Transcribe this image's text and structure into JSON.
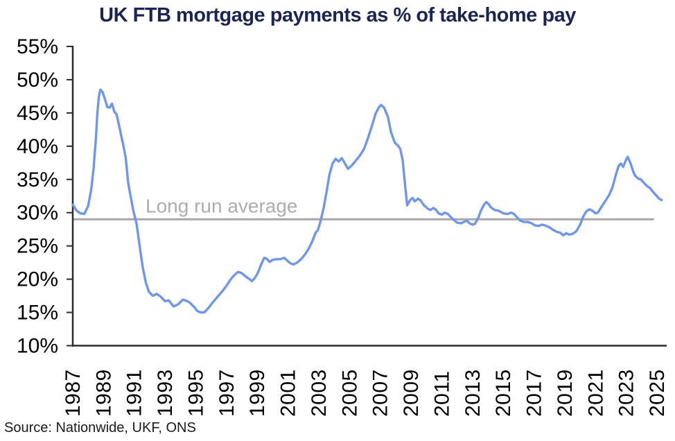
{
  "chart_data": {
    "type": "line",
    "title": "UK FTB mortgage payments as % of take-home pay",
    "source": "Source: Nationwide, UKF, ONS",
    "xlabel": "",
    "ylabel": "",
    "grid": false,
    "legend": "none",
    "colors": {
      "title": "#1a2557",
      "series": "#6c96f2",
      "average_line": "#a7a7a7",
      "average_label": "#adadad",
      "axis": "#2b2b2b",
      "tick_text": "#000000"
    },
    "y_axis": {
      "min": 10,
      "max": 55,
      "step": 5,
      "tick_suffix": "%",
      "tick_labels": [
        "10%",
        "15%",
        "20%",
        "25%",
        "30%",
        "35%",
        "40%",
        "45%",
        "50%",
        "55%"
      ]
    },
    "x_axis": {
      "min": 1987,
      "max": 2025,
      "tick_step": 2,
      "tick_labels": [
        "1987",
        "1989",
        "1991",
        "1993",
        "1995",
        "1997",
        "1999",
        "2001",
        "2003",
        "2005",
        "2007",
        "2009",
        "2011",
        "2013",
        "2015",
        "2017",
        "2019",
        "2021",
        "2023",
        "2025"
      ]
    },
    "average_line": {
      "label": "Long run average",
      "value": 29.0,
      "x_start": 1987,
      "x_end": 2024.8
    },
    "series": [
      {
        "name": "FTB mortgage payments as % of take-home pay",
        "points": [
          [
            1987.0,
            31.2
          ],
          [
            1987.25,
            30.3
          ],
          [
            1987.5,
            29.9
          ],
          [
            1987.75,
            29.8
          ],
          [
            1988.0,
            31.0
          ],
          [
            1988.2,
            33.5
          ],
          [
            1988.35,
            36.5
          ],
          [
            1988.5,
            41.0
          ],
          [
            1988.6,
            45.0
          ],
          [
            1988.7,
            47.5
          ],
          [
            1988.8,
            48.5
          ],
          [
            1988.95,
            48.1
          ],
          [
            1989.1,
            47.0
          ],
          [
            1989.25,
            45.9
          ],
          [
            1989.4,
            45.8
          ],
          [
            1989.55,
            46.4
          ],
          [
            1989.7,
            45.2
          ],
          [
            1989.85,
            44.8
          ],
          [
            1990.0,
            43.2
          ],
          [
            1990.15,
            41.6
          ],
          [
            1990.3,
            40.0
          ],
          [
            1990.45,
            38.2
          ],
          [
            1990.6,
            34.5
          ],
          [
            1990.75,
            32.6
          ],
          [
            1990.95,
            30.2
          ],
          [
            1991.15,
            28.3
          ],
          [
            1991.35,
            25.0
          ],
          [
            1991.55,
            21.8
          ],
          [
            1991.75,
            19.5
          ],
          [
            1991.95,
            18.1
          ],
          [
            1992.2,
            17.5
          ],
          [
            1992.45,
            17.8
          ],
          [
            1992.7,
            17.4
          ],
          [
            1993.0,
            16.7
          ],
          [
            1993.25,
            16.8
          ],
          [
            1993.55,
            15.9
          ],
          [
            1993.85,
            16.2
          ],
          [
            1994.15,
            16.9
          ],
          [
            1994.35,
            16.8
          ],
          [
            1994.6,
            16.5
          ],
          [
            1994.9,
            15.8
          ],
          [
            1995.1,
            15.2
          ],
          [
            1995.35,
            15.0
          ],
          [
            1995.55,
            15.0
          ],
          [
            1995.8,
            15.6
          ],
          [
            1996.1,
            16.5
          ],
          [
            1996.4,
            17.3
          ],
          [
            1996.7,
            18.1
          ],
          [
            1997.0,
            19.0
          ],
          [
            1997.25,
            19.9
          ],
          [
            1997.5,
            20.6
          ],
          [
            1997.75,
            21.1
          ],
          [
            1998.0,
            20.9
          ],
          [
            1998.25,
            20.4
          ],
          [
            1998.5,
            20.0
          ],
          [
            1998.65,
            19.7
          ],
          [
            1998.85,
            20.2
          ],
          [
            1999.05,
            21.0
          ],
          [
            1999.25,
            22.2
          ],
          [
            1999.45,
            23.2
          ],
          [
            1999.6,
            23.1
          ],
          [
            1999.8,
            22.6
          ],
          [
            2000.0,
            22.9
          ],
          [
            2000.25,
            23.0
          ],
          [
            2000.5,
            23.0
          ],
          [
            2000.75,
            23.2
          ],
          [
            2000.95,
            22.8
          ],
          [
            2001.15,
            22.4
          ],
          [
            2001.35,
            22.2
          ],
          [
            2001.6,
            22.5
          ],
          [
            2001.85,
            23.0
          ],
          [
            2002.1,
            23.7
          ],
          [
            2002.35,
            24.6
          ],
          [
            2002.6,
            25.8
          ],
          [
            2002.8,
            27.0
          ],
          [
            2002.95,
            27.4
          ],
          [
            2003.1,
            28.6
          ],
          [
            2003.3,
            30.5
          ],
          [
            2003.5,
            33.0
          ],
          [
            2003.7,
            35.8
          ],
          [
            2003.9,
            37.4
          ],
          [
            2004.1,
            38.1
          ],
          [
            2004.3,
            37.7
          ],
          [
            2004.5,
            38.2
          ],
          [
            2004.7,
            37.4
          ],
          [
            2004.9,
            36.6
          ],
          [
            2005.15,
            37.1
          ],
          [
            2005.4,
            37.8
          ],
          [
            2005.65,
            38.5
          ],
          [
            2005.95,
            39.6
          ],
          [
            2006.2,
            41.2
          ],
          [
            2006.45,
            43.0
          ],
          [
            2006.7,
            44.9
          ],
          [
            2006.9,
            45.8
          ],
          [
            2007.05,
            46.2
          ],
          [
            2007.25,
            45.8
          ],
          [
            2007.5,
            44.4
          ],
          [
            2007.7,
            42.1
          ],
          [
            2007.95,
            40.5
          ],
          [
            2008.15,
            40.1
          ],
          [
            2008.3,
            39.6
          ],
          [
            2008.45,
            38.0
          ],
          [
            2008.6,
            34.5
          ],
          [
            2008.75,
            31.1
          ],
          [
            2008.95,
            31.9
          ],
          [
            2009.1,
            32.2
          ],
          [
            2009.25,
            31.7
          ],
          [
            2009.45,
            32.1
          ],
          [
            2009.6,
            31.9
          ],
          [
            2009.85,
            31.1
          ],
          [
            2010.1,
            30.6
          ],
          [
            2010.25,
            30.4
          ],
          [
            2010.45,
            30.7
          ],
          [
            2010.6,
            30.5
          ],
          [
            2010.8,
            29.9
          ],
          [
            2011.0,
            29.7
          ],
          [
            2011.2,
            30.0
          ],
          [
            2011.4,
            29.8
          ],
          [
            2011.6,
            29.3
          ],
          [
            2011.8,
            28.9
          ],
          [
            2012.0,
            28.5
          ],
          [
            2012.25,
            28.4
          ],
          [
            2012.5,
            28.7
          ],
          [
            2012.65,
            28.8
          ],
          [
            2012.8,
            28.4
          ],
          [
            2013.0,
            28.2
          ],
          [
            2013.15,
            28.3
          ],
          [
            2013.35,
            29.1
          ],
          [
            2013.55,
            30.3
          ],
          [
            2013.75,
            31.2
          ],
          [
            2013.9,
            31.6
          ],
          [
            2014.05,
            31.3
          ],
          [
            2014.2,
            30.8
          ],
          [
            2014.45,
            30.4
          ],
          [
            2014.7,
            30.3
          ],
          [
            2015.0,
            29.9
          ],
          [
            2015.3,
            29.8
          ],
          [
            2015.5,
            30.0
          ],
          [
            2015.7,
            29.8
          ],
          [
            2015.9,
            29.3
          ],
          [
            2016.1,
            28.8
          ],
          [
            2016.35,
            28.6
          ],
          [
            2016.6,
            28.6
          ],
          [
            2016.85,
            28.4
          ],
          [
            2017.05,
            28.1
          ],
          [
            2017.3,
            28.0
          ],
          [
            2017.5,
            28.2
          ],
          [
            2017.7,
            28.1
          ],
          [
            2018.0,
            27.8
          ],
          [
            2018.25,
            27.4
          ],
          [
            2018.5,
            27.1
          ],
          [
            2018.7,
            27.0
          ],
          [
            2018.9,
            26.6
          ],
          [
            2019.1,
            26.9
          ],
          [
            2019.3,
            26.7
          ],
          [
            2019.5,
            26.8
          ],
          [
            2019.75,
            27.2
          ],
          [
            2020.0,
            28.2
          ],
          [
            2020.2,
            29.4
          ],
          [
            2020.4,
            30.2
          ],
          [
            2020.6,
            30.5
          ],
          [
            2020.8,
            30.3
          ],
          [
            2021.0,
            29.9
          ],
          [
            2021.15,
            30.0
          ],
          [
            2021.4,
            30.9
          ],
          [
            2021.65,
            31.8
          ],
          [
            2021.9,
            32.7
          ],
          [
            2022.1,
            33.8
          ],
          [
            2022.3,
            35.5
          ],
          [
            2022.5,
            37.0
          ],
          [
            2022.65,
            37.4
          ],
          [
            2022.8,
            36.9
          ],
          [
            2023.0,
            38.0
          ],
          [
            2023.1,
            38.4
          ],
          [
            2023.3,
            37.3
          ],
          [
            2023.45,
            36.2
          ],
          [
            2023.6,
            35.5
          ],
          [
            2023.8,
            35.1
          ],
          [
            2023.95,
            35.0
          ],
          [
            2024.15,
            34.5
          ],
          [
            2024.35,
            34.0
          ],
          [
            2024.55,
            33.7
          ],
          [
            2024.75,
            33.1
          ],
          [
            2024.95,
            32.6
          ],
          [
            2025.15,
            32.1
          ],
          [
            2025.3,
            31.9
          ]
        ]
      }
    ]
  }
}
